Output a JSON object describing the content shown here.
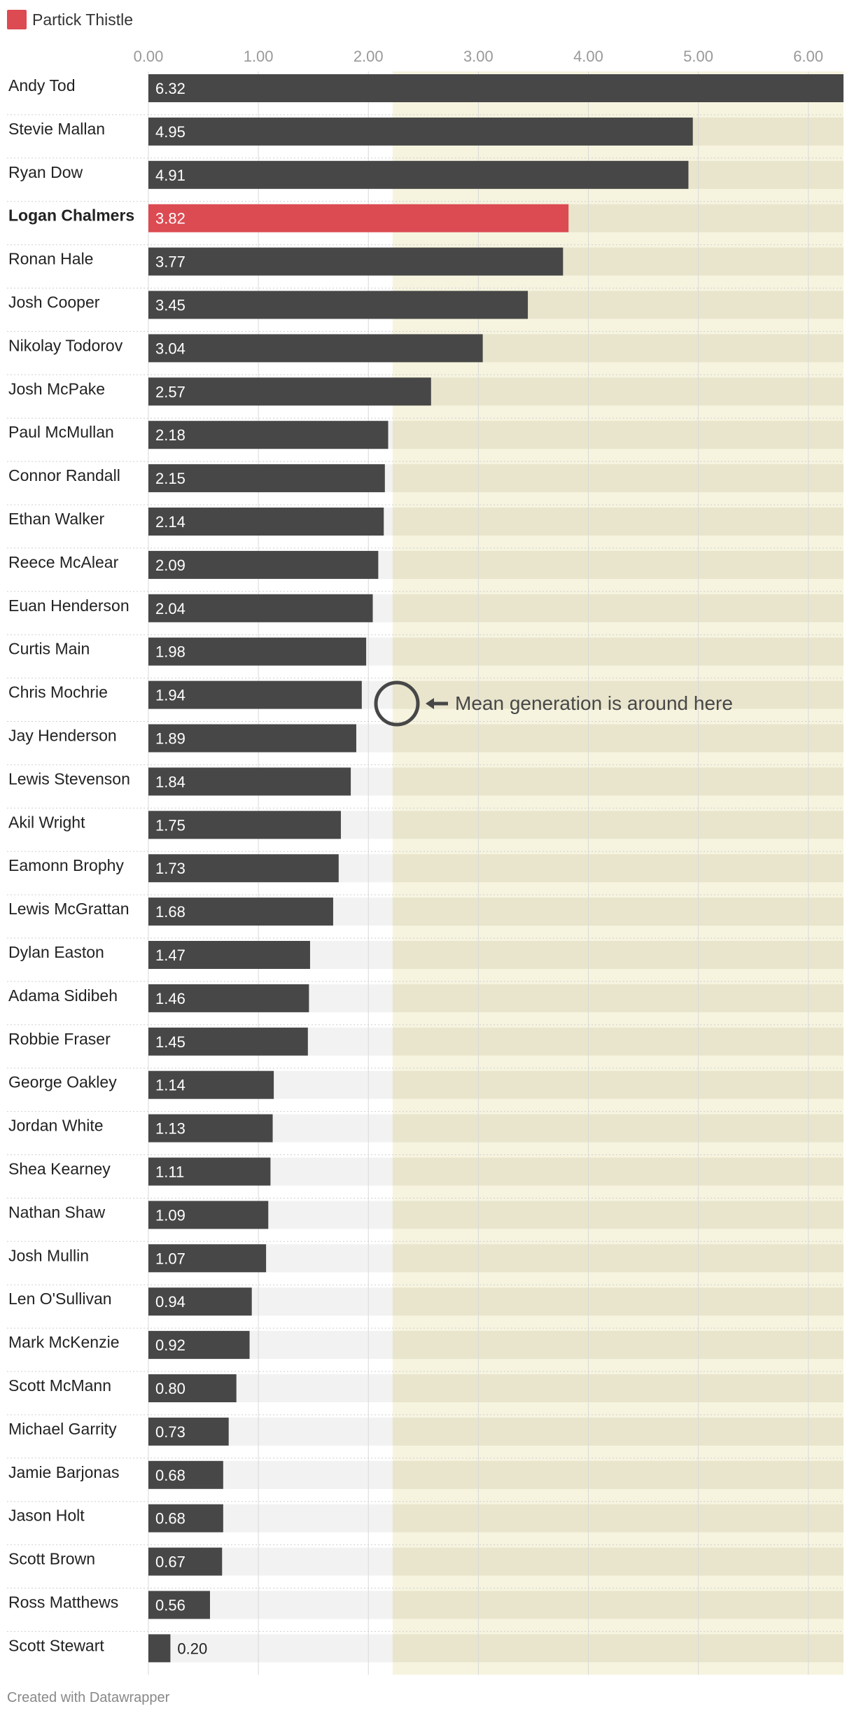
{
  "legend": {
    "label": "Partick Thistle",
    "color": "#dc4a52"
  },
  "annotation": {
    "text": "Mean generation is around here"
  },
  "footer": {
    "text": "Created with Datawrapper"
  },
  "colors": {
    "bar": "#474747",
    "highlight": "#dc4a52",
    "shaded_region": "#f5f2d9",
    "row_band": "#f2f2f2"
  },
  "chart_data": {
    "type": "bar",
    "orientation": "horizontal",
    "xlim": [
      0,
      6.32
    ],
    "xticks": [
      "0.00",
      "1.00",
      "2.00",
      "3.00",
      "4.00",
      "5.00",
      "6.00"
    ],
    "shaded_region_start": 2.22,
    "grid": true,
    "highlight": "Logan Chalmers",
    "categories": [
      "Andy Tod",
      "Stevie Mallan",
      "Ryan Dow",
      "Logan Chalmers",
      "Ronan Hale",
      "Josh Cooper",
      "Nikolay Todorov",
      "Josh McPake",
      "Paul McMullan",
      "Connor Randall",
      "Ethan Walker",
      "Reece McAlear",
      "Euan Henderson",
      "Curtis Main",
      "Chris Mochrie",
      "Jay Henderson",
      "Lewis Stevenson",
      "Akil Wright",
      "Eamonn Brophy",
      "Lewis McGrattan",
      "Dylan Easton",
      "Adama Sidibeh",
      "Robbie Fraser",
      "George Oakley",
      "Jordan White",
      "Shea Kearney",
      "Nathan Shaw",
      "Josh Mullin",
      "Len O'Sullivan",
      "Mark McKenzie",
      "Scott McMann",
      "Michael Garrity",
      "Jamie Barjonas",
      "Jason Holt",
      "Scott Brown",
      "Ross Matthews",
      "Scott Stewart"
    ],
    "values": [
      6.32,
      4.95,
      4.91,
      3.82,
      3.77,
      3.45,
      3.04,
      2.57,
      2.18,
      2.15,
      2.14,
      2.09,
      2.04,
      1.98,
      1.94,
      1.89,
      1.84,
      1.75,
      1.73,
      1.68,
      1.47,
      1.46,
      1.45,
      1.14,
      1.13,
      1.11,
      1.09,
      1.07,
      0.94,
      0.92,
      0.8,
      0.73,
      0.68,
      0.68,
      0.67,
      0.56,
      0.2
    ],
    "labels": [
      "6.32",
      "4.95",
      "4.91",
      "3.82",
      "3.77",
      "3.45",
      "3.04",
      "2.57",
      "2.18",
      "2.15",
      "2.14",
      "2.09",
      "2.04",
      "1.98",
      "1.94",
      "1.89",
      "1.84",
      "1.75",
      "1.73",
      "1.68",
      "1.47",
      "1.46",
      "1.45",
      "1.14",
      "1.13",
      "1.11",
      "1.09",
      "1.07",
      "0.94",
      "0.92",
      "0.80",
      "0.73",
      "0.68",
      "0.68",
      "0.67",
      "0.56",
      "0.20"
    ]
  }
}
